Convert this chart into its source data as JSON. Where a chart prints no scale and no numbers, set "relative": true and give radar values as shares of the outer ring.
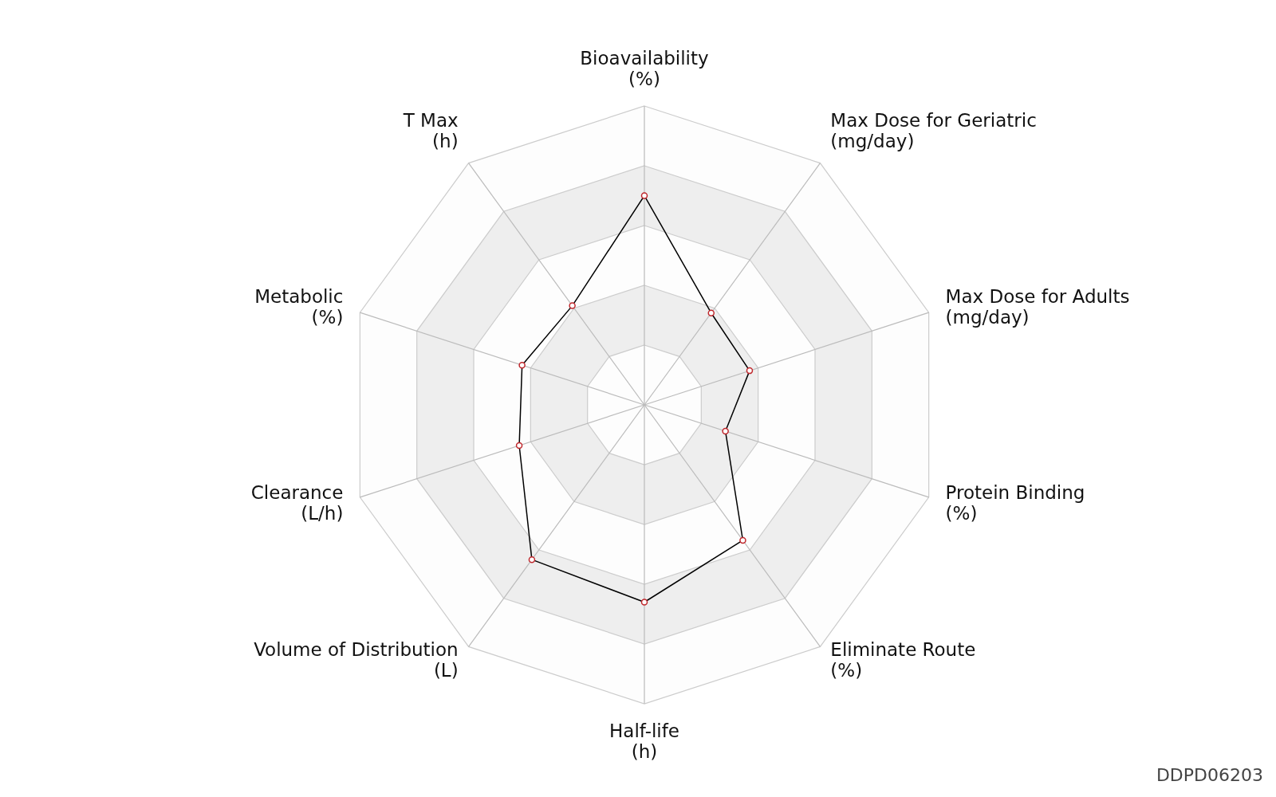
{
  "chart_data": {
    "type": "radar",
    "relative": true,
    "categories": [
      "Bioavailability\n(%)",
      "Max Dose for Geriatric\n(mg/day)",
      "Max Dose for Adults\n(mg/day)",
      "Protein Binding\n(%)",
      "Eliminate Route\n(%)",
      "Half-life\n(h)",
      "Volume of Distribution\n(L)",
      "Clearance\n(L/h)",
      "Metabolic\n(%)",
      "T Max\n(h)"
    ],
    "series": [
      {
        "color": "#000000",
        "values": [
          0.7,
          0.38,
          0.37,
          0.285,
          0.56,
          0.66,
          0.64,
          0.44,
          0.43,
          0.41
        ]
      }
    ],
    "marker": "circle",
    "annotations": [
      "DDPD06203"
    ]
  }
}
